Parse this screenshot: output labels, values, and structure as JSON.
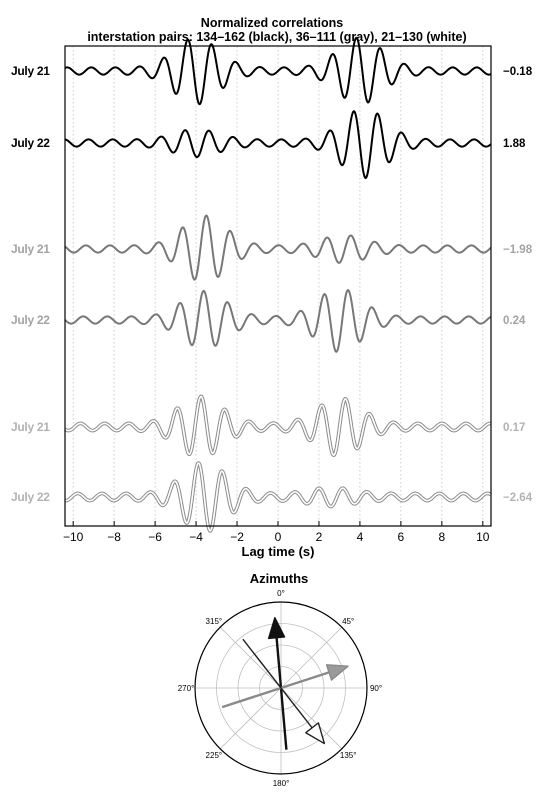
{
  "chart_data": [
    {
      "type": "line",
      "title": "Normalized correlations",
      "subtitle": "interstation pairs: 134–162 (black), 36–111 (gray), 21–130 (white)",
      "xlabel": "Lag time (s)",
      "xlim": [
        -10.4,
        10.4
      ],
      "xticks": [
        -10,
        -8,
        -6,
        -4,
        -2,
        0,
        2,
        4,
        6,
        8,
        10
      ],
      "xtick_labels": [
        "−10",
        "−8",
        "−6",
        "−4",
        "−2",
        "0",
        "2",
        "4",
        "6",
        "8",
        "10"
      ],
      "grid": "vertical dotted",
      "series": [
        {
          "pair": "134–162",
          "style": "black",
          "day": "July 21",
          "value_label": "−0.18",
          "packets": [
            {
              "center": -4.0,
              "amp": 1.0
            },
            {
              "center": 4.0,
              "amp": 1.0
            }
          ]
        },
        {
          "pair": "134–162",
          "style": "black",
          "day": "July 22",
          "value_label": "1.88",
          "packets": [
            {
              "center": -4.0,
              "amp": 0.35
            },
            {
              "center": 4.2,
              "amp": 1.05
            }
          ]
        },
        {
          "pair": "36–111",
          "style": "gray",
          "day": "July 21",
          "value_label": "−1.98",
          "packets": [
            {
              "center": -3.6,
              "amp": 1.0
            },
            {
              "center": 3.2,
              "amp": 0.35
            }
          ]
        },
        {
          "pair": "36–111",
          "style": "gray",
          "day": "July 22",
          "value_label": "0.24",
          "packets": [
            {
              "center": -3.6,
              "amp": 0.85
            },
            {
              "center": 3.0,
              "amp": 0.95
            }
          ]
        },
        {
          "pair": "21–130",
          "style": "white",
          "day": "July 21",
          "value_label": "0.17",
          "packets": [
            {
              "center": -3.8,
              "amp": 0.9
            },
            {
              "center": 3.0,
              "amp": 0.85
            }
          ]
        },
        {
          "pair": "21–130",
          "style": "white",
          "day": "July 22",
          "value_label": "−2.64",
          "packets": [
            {
              "center": -3.6,
              "amp": 1.05
            },
            {
              "center": 2.6,
              "amp": 0.2
            }
          ]
        }
      ]
    },
    {
      "type": "polar",
      "title": "Azimuths",
      "angle_labels": [
        "0°",
        "45°",
        "90°",
        "135°",
        "180°",
        "225°",
        "270°",
        "315°"
      ],
      "arrows": [
        {
          "pair": "134–162",
          "style": "black",
          "head_azimuth_deg": 355,
          "tail_azimuth_deg": 175
        },
        {
          "pair": "36–111",
          "style": "gray",
          "head_azimuth_deg": 72,
          "tail_azimuth_deg": 252
        },
        {
          "pair": "21–130",
          "style": "white",
          "head_azimuth_deg": 142,
          "tail_azimuth_deg": 322
        }
      ]
    }
  ],
  "colors": {
    "black": "#000000",
    "gray": "#777777",
    "white_outline": "#8c8c8c",
    "black_label": "#000000",
    "gray_label": "#a3a3a3",
    "white_label": "#b3b3b3",
    "grid": "#bfbfbf"
  }
}
